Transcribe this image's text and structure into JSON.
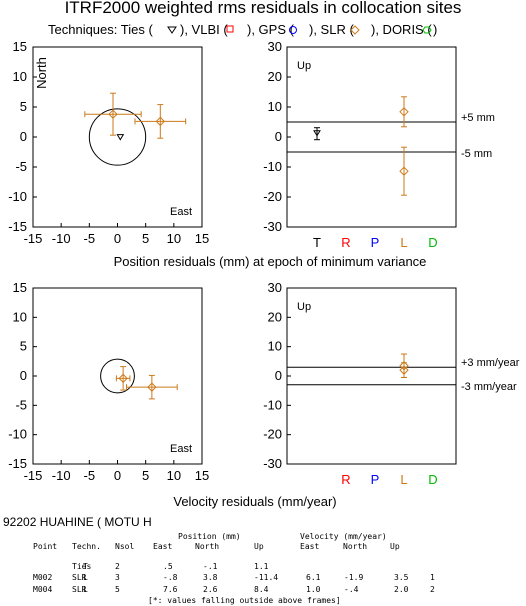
{
  "title": "ITRF2000 weighted rms residuals in collocation sites",
  "legend_prefix": "Techniques: Ties (",
  "legend_items": [
    {
      "name": "Ties",
      "glyph": "triangle",
      "color": "#000000"
    },
    {
      "name": "VLBI",
      "glyph": "square",
      "color": "#ff0000"
    },
    {
      "name": "GPS",
      "glyph": "circle",
      "color": "#0000ff"
    },
    {
      "name": "SLR",
      "glyph": "diamond",
      "color": "#cc7a1a"
    },
    {
      "name": "DORIS",
      "glyph": "hexagon",
      "color": "#00bb00"
    }
  ],
  "legend_text": {
    "ties": "Techniques: Ties (",
    "vlbi": "), VLBI (",
    "gps": "), GPS (",
    "slr": "), SLR (",
    "doris": "), DORIS (",
    "end": ")"
  },
  "tech_letters": [
    {
      "letter": "T",
      "color": "#000000"
    },
    {
      "letter": "R",
      "color": "#ff0000"
    },
    {
      "letter": "P",
      "color": "#0000ff"
    },
    {
      "letter": "L",
      "color": "#cc7a1a"
    },
    {
      "letter": "D",
      "color": "#00bb00"
    }
  ],
  "chart_data": [
    {
      "type": "scatter",
      "panel": "position-horizontal",
      "xlabel_top": "North",
      "xlabel_corner": "East",
      "xlim": [
        -15,
        15
      ],
      "ylim": [
        -15,
        15
      ],
      "xticks": [
        -15,
        -10,
        -5,
        0,
        5,
        10,
        15
      ],
      "yticks": [
        -15,
        -10,
        -5,
        0,
        5,
        10,
        15
      ],
      "circle_radius": 5,
      "points": [
        {
          "tech": "Ties",
          "east": 0.5,
          "north": -0.1,
          "ex": 0,
          "ey": 0
        },
        {
          "tech": "SLR",
          "east": -0.8,
          "north": 3.8,
          "ex": 5,
          "ey": 3.5
        },
        {
          "tech": "SLR",
          "east": 7.6,
          "north": 2.6,
          "ex": 4.5,
          "ey": 2.8
        }
      ]
    },
    {
      "type": "scatter",
      "panel": "position-up",
      "label": "Up",
      "ylim": [
        -30,
        30
      ],
      "yticks": [
        -30,
        -20,
        -10,
        0,
        10,
        20,
        30
      ],
      "categories": [
        "T",
        "R",
        "P",
        "L",
        "D"
      ],
      "limits": [
        5,
        -5
      ],
      "limit_labels": [
        "+5 mm",
        "-5 mm"
      ],
      "points": [
        {
          "tech": "Ties",
          "category": "T",
          "up": 1.1,
          "err": 2
        },
        {
          "tech": "SLR",
          "category": "L",
          "up": 8.4,
          "err": 5
        },
        {
          "tech": "SLR",
          "category": "L",
          "up": -11.4,
          "err": 8
        }
      ]
    },
    {
      "type": "scatter",
      "panel": "velocity-horizontal",
      "xlabel_corner": "East",
      "xlim": [
        -15,
        15
      ],
      "ylim": [
        -15,
        15
      ],
      "xticks": [
        -15,
        -10,
        -5,
        0,
        5,
        10,
        15
      ],
      "yticks": [
        -15,
        -10,
        -5,
        0,
        5,
        10,
        15
      ],
      "circle_radius": 3,
      "points": [
        {
          "tech": "SLR",
          "east": 6.1,
          "north": -1.9,
          "ex": 4.5,
          "ey": 2
        },
        {
          "tech": "SLR",
          "east": 1.0,
          "north": -0.4,
          "ex": 1.2,
          "ey": 2
        }
      ]
    },
    {
      "type": "scatter",
      "panel": "velocity-up",
      "label": "Up",
      "ylim": [
        -30,
        30
      ],
      "yticks": [
        -30,
        -20,
        -10,
        0,
        10,
        20,
        30
      ],
      "categories": [
        "T",
        "R",
        "P",
        "L",
        "D"
      ],
      "limits": [
        3,
        -3
      ],
      "limit_labels": [
        "+3 mm/year",
        "-3 mm/year"
      ],
      "points": [
        {
          "tech": "SLR",
          "category": "L",
          "up": 3.5,
          "err": 4
        },
        {
          "tech": "SLR",
          "category": "L",
          "up": 2.0,
          "err": 2.5
        }
      ]
    }
  ],
  "xlabel_position": "Position residuals (mm) at epoch of minimum variance",
  "xlabel_velocity": "Velocity residuals (mm/year)",
  "site_title": "92202 HUAHINE ( MOTU H",
  "table": {
    "group_headers": [
      "Position (mm)",
      "Velocity (mm/year)"
    ],
    "headers": [
      "Point",
      "Techn.",
      "Nsol",
      "East",
      "North",
      "Up",
      "East",
      "North",
      "Up"
    ],
    "rows": [
      [
        "",
        "Ties",
        "T",
        "2",
        ".5",
        "-.1",
        "1.1",
        "",
        "",
        "",
        ""
      ],
      [
        "M002",
        "SLR",
        "L",
        "3",
        "-.8",
        "3.8",
        "-11.4",
        "6.1",
        "-1.9",
        "3.5",
        "1"
      ],
      [
        "M004",
        "SLR",
        "L",
        "5",
        "7.6",
        "2.6",
        "8.4",
        "1.0",
        "-.4",
        "2.0",
        "2"
      ]
    ],
    "footnote": "[*: values falling outside above frames]"
  }
}
